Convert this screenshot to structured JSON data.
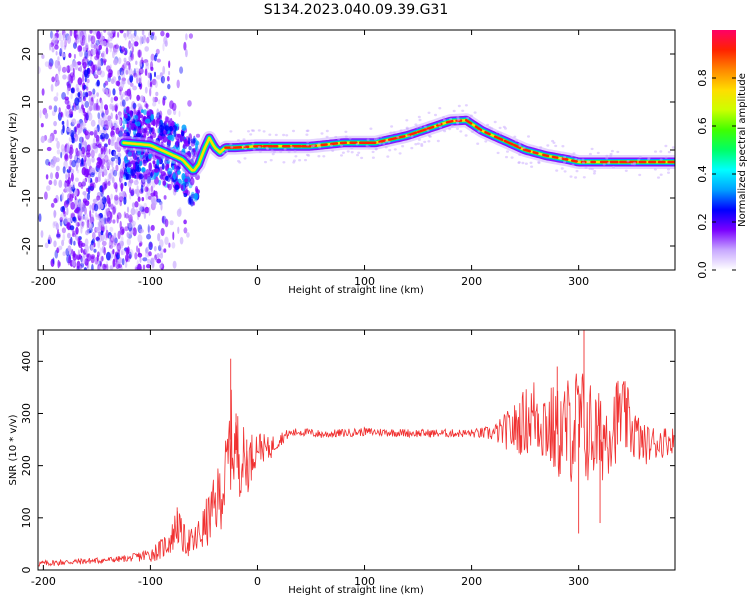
{
  "title": "S134.2023.040.09.39.G31",
  "chart_data": [
    {
      "type": "heatmap",
      "xlabel": "Height of straight line (km)",
      "ylabel": "Frequency (Hz)",
      "xlim": [
        -205,
        390
      ],
      "ylim": [
        -25,
        25
      ],
      "xticks": [
        -200,
        -100,
        0,
        100,
        200,
        300
      ],
      "yticks": [
        -20,
        -10,
        0,
        10,
        20
      ],
      "grid": false,
      "colorbar": {
        "label": "Normalized spectral amplitude",
        "range": [
          0,
          1
        ],
        "ticks": [
          0.0,
          0.2,
          0.4,
          0.6,
          0.8
        ],
        "colors": [
          "#ffffff",
          "#c8a8ff",
          "#7a00ff",
          "#0000ff",
          "#00a0ff",
          "#00ffff",
          "#00ff66",
          "#40ff00",
          "#ccff00",
          "#ffdd00",
          "#ff8800",
          "#ff2200",
          "#ff0066"
        ]
      },
      "ridge": {
        "x": [
          -125,
          -100,
          -80,
          -70,
          -60,
          -55,
          -50,
          -45,
          -40,
          -35,
          -30,
          -20,
          0,
          20,
          50,
          80,
          110,
          140,
          160,
          180,
          195,
          210,
          230,
          250,
          270,
          290,
          300,
          330,
          360,
          390
        ],
        "frequency": [
          1.5,
          1.0,
          -1.0,
          -2.0,
          -4.5,
          -3.0,
          0.0,
          2.5,
          0.5,
          -0.5,
          0.5,
          0.5,
          0.8,
          0.8,
          0.8,
          1.5,
          1.5,
          3.0,
          4.5,
          6.0,
          6.2,
          4.0,
          2.0,
          0.0,
          -1.2,
          -2.0,
          -2.5,
          -2.5,
          -2.5,
          -2.5
        ]
      }
    },
    {
      "type": "line",
      "xlabel": "Height of straight line (km)",
      "ylabel": "SNR (10 * v/v)",
      "xlim": [
        -205,
        390
      ],
      "ylim": [
        0,
        460
      ],
      "xticks": [
        -200,
        -100,
        0,
        100,
        200,
        300
      ],
      "yticks": [
        0,
        100,
        200,
        300,
        400
      ],
      "grid": false,
      "color": "#f03030",
      "series": [
        {
          "x": [
            -205,
            -180,
            -150,
            -120,
            -100,
            -90,
            -80,
            -75,
            -70,
            -60,
            -50,
            -40,
            -30,
            -25,
            -20,
            -10,
            0,
            10,
            20,
            30,
            40,
            60,
            100,
            150,
            200,
            220,
            240,
            260,
            280,
            300,
            320,
            340,
            360,
            390
          ],
          "values": [
            12,
            15,
            18,
            22,
            30,
            40,
            60,
            90,
            60,
            50,
            80,
            120,
            170,
            250,
            230,
            200,
            240,
            230,
            250,
            262,
            265,
            260,
            265,
            262,
            262,
            262,
            270,
            300,
            260,
            280,
            250,
            300,
            240,
            250
          ],
          "spread": [
            6,
            6,
            6,
            6,
            15,
            20,
            30,
            40,
            30,
            30,
            45,
            60,
            80,
            100,
            90,
            60,
            30,
            25,
            15,
            8,
            8,
            8,
            8,
            8,
            8,
            15,
            50,
            80,
            90,
            120,
            90,
            80,
            40,
            25
          ]
        }
      ]
    }
  ]
}
